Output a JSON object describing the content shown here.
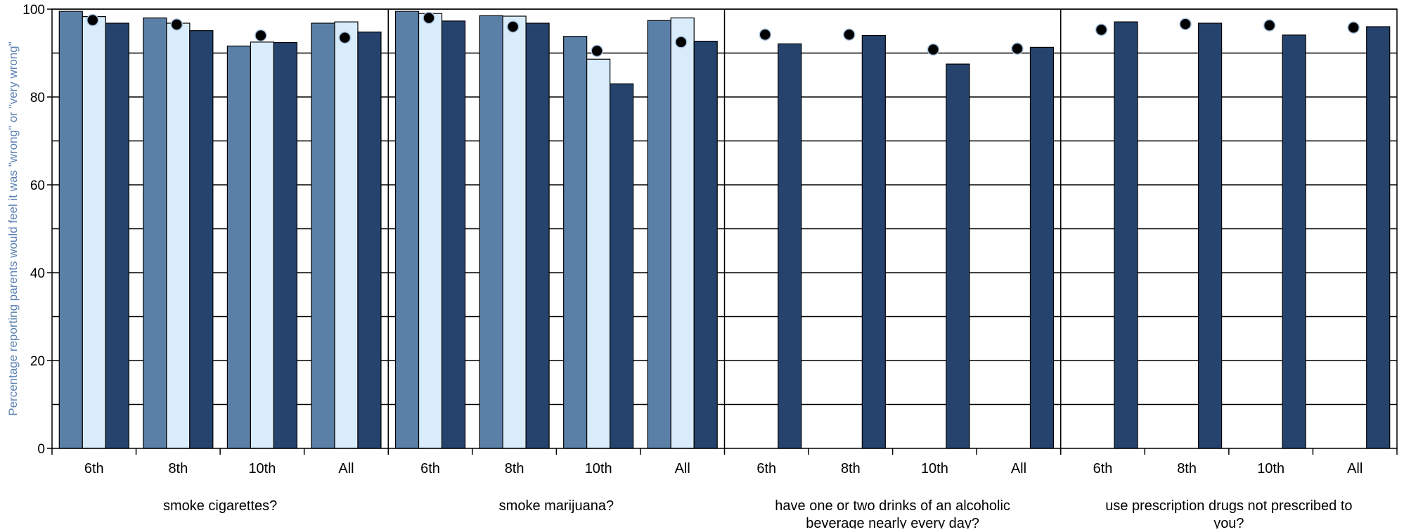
{
  "chart_data": {
    "type": "bar",
    "title": "",
    "xlabel": "",
    "ylabel": "Percentage reporting parents would feel it was \"wrong\" or \"very wrong\"",
    "ylim": [
      0,
      100
    ],
    "yticks": [
      0,
      20,
      40,
      60,
      80,
      100
    ],
    "grid": true,
    "colors": {
      "series1": "#5b80a8",
      "series2": "#d8ecfb",
      "series3": "#26436d",
      "marker": "#000000",
      "marker_edge": "#a9c4e0",
      "ylabel": "#5b80b0"
    },
    "groups": [
      {
        "label": "smoke cigarettes?",
        "categories": [
          "6th",
          "8th",
          "10th",
          "All"
        ],
        "series": [
          {
            "values": [
              99.5,
              98,
              91.6,
              96.8
            ]
          },
          {
            "values": [
              98.3,
              96.8,
              92.5,
              97.1
            ]
          },
          {
            "values": [
              96.8,
              95.1,
              92.4,
              94.8
            ]
          }
        ],
        "markers": [
          97.5,
          96.5,
          94,
          93.5
        ]
      },
      {
        "label": "smoke marijuana?",
        "categories": [
          "6th",
          "8th",
          "10th",
          "All"
        ],
        "series": [
          {
            "values": [
              99.5,
              98.5,
              93.8,
              97.4
            ]
          },
          {
            "values": [
              99,
              98.4,
              88.6,
              98
            ]
          },
          {
            "values": [
              97.3,
              96.8,
              83,
              92.7
            ]
          }
        ],
        "markers": [
          98,
          96,
          90.5,
          92.5
        ]
      },
      {
        "label": "have one or two drinks of an alcoholic beverage nearly every day?",
        "categories": [
          "6th",
          "8th",
          "10th",
          "All"
        ],
        "series": [
          {
            "values": [
              null,
              null,
              null,
              null
            ]
          },
          {
            "values": [
              null,
              null,
              null,
              null
            ]
          },
          {
            "values": [
              92.1,
              94,
              87.5,
              91.3
            ]
          }
        ],
        "markers": [
          94.2,
          94.2,
          90.8,
          91
        ]
      },
      {
        "label": "use prescription drugs not prescribed to you?",
        "categories": [
          "6th",
          "8th",
          "10th",
          "All"
        ],
        "series": [
          {
            "values": [
              null,
              null,
              null,
              null
            ]
          },
          {
            "values": [
              null,
              null,
              null,
              null
            ]
          },
          {
            "values": [
              97.1,
              96.8,
              94.1,
              96
            ]
          }
        ],
        "markers": [
          95.3,
          96.6,
          96.3,
          95.8
        ]
      }
    ]
  }
}
